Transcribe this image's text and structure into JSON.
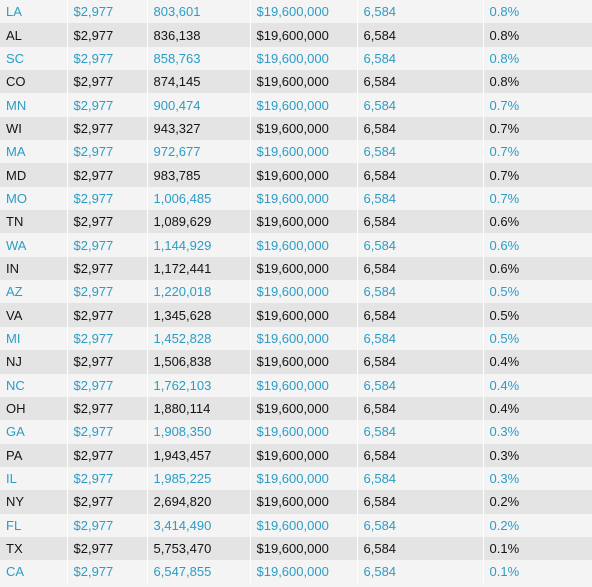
{
  "colors": {
    "blue_text": "#2a9dc6",
    "dark_text": "#141414",
    "band_light": "#f4f4f4",
    "band_dark": "#e4e4e4"
  },
  "rows": [
    [
      "LA",
      "$2,977",
      "803,601",
      "$19,600,000",
      "6,584",
      "0.8%"
    ],
    [
      "AL",
      "$2,977",
      "836,138",
      "$19,600,000",
      "6,584",
      "0.8%"
    ],
    [
      "SC",
      "$2,977",
      "858,763",
      "$19,600,000",
      "6,584",
      "0.8%"
    ],
    [
      "CO",
      "$2,977",
      "874,145",
      "$19,600,000",
      "6,584",
      "0.8%"
    ],
    [
      "MN",
      "$2,977",
      "900,474",
      "$19,600,000",
      "6,584",
      "0.7%"
    ],
    [
      "WI",
      "$2,977",
      "943,327",
      "$19,600,000",
      "6,584",
      "0.7%"
    ],
    [
      "MA",
      "$2,977",
      "972,677",
      "$19,600,000",
      "6,584",
      "0.7%"
    ],
    [
      "MD",
      "$2,977",
      "983,785",
      "$19,600,000",
      "6,584",
      "0.7%"
    ],
    [
      "MO",
      "$2,977",
      "1,006,485",
      "$19,600,000",
      "6,584",
      "0.7%"
    ],
    [
      "TN",
      "$2,977",
      "1,089,629",
      "$19,600,000",
      "6,584",
      "0.6%"
    ],
    [
      "WA",
      "$2,977",
      "1,144,929",
      "$19,600,000",
      "6,584",
      "0.6%"
    ],
    [
      "IN",
      "$2,977",
      "1,172,441",
      "$19,600,000",
      "6,584",
      "0.6%"
    ],
    [
      "AZ",
      "$2,977",
      "1,220,018",
      "$19,600,000",
      "6,584",
      "0.5%"
    ],
    [
      "VA",
      "$2,977",
      "1,345,628",
      "$19,600,000",
      "6,584",
      "0.5%"
    ],
    [
      "MI",
      "$2,977",
      "1,452,828",
      "$19,600,000",
      "6,584",
      "0.5%"
    ],
    [
      "NJ",
      "$2,977",
      "1,506,838",
      "$19,600,000",
      "6,584",
      "0.4%"
    ],
    [
      "NC",
      "$2,977",
      "1,762,103",
      "$19,600,000",
      "6,584",
      "0.4%"
    ],
    [
      "OH",
      "$2,977",
      "1,880,114",
      "$19,600,000",
      "6,584",
      "0.4%"
    ],
    [
      "GA",
      "$2,977",
      "1,908,350",
      "$19,600,000",
      "6,584",
      "0.3%"
    ],
    [
      "PA",
      "$2,977",
      "1,943,457",
      "$19,600,000",
      "6,584",
      "0.3%"
    ],
    [
      "IL",
      "$2,977",
      "1,985,225",
      "$19,600,000",
      "6,584",
      "0.3%"
    ],
    [
      "NY",
      "$2,977",
      "2,694,820",
      "$19,600,000",
      "6,584",
      "0.2%"
    ],
    [
      "FL",
      "$2,977",
      "3,414,490",
      "$19,600,000",
      "6,584",
      "0.2%"
    ],
    [
      "TX",
      "$2,977",
      "5,753,470",
      "$19,600,000",
      "6,584",
      "0.1%"
    ],
    [
      "CA",
      "$2,977",
      "6,547,855",
      "$19,600,000",
      "6,584",
      "0.1%"
    ]
  ]
}
